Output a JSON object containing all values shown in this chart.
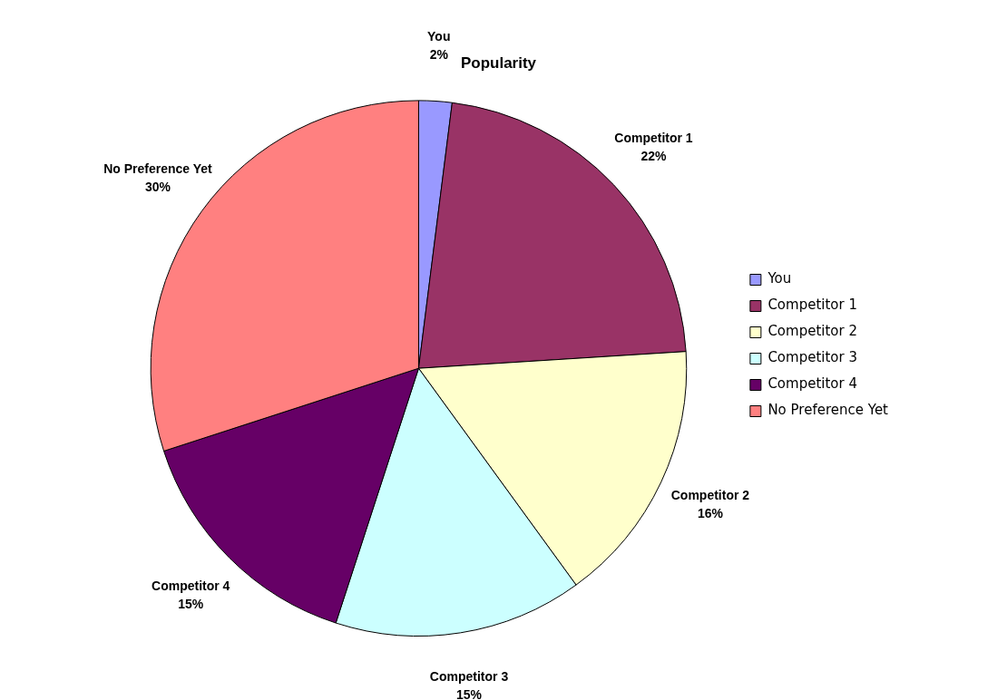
{
  "chart_data": {
    "type": "pie",
    "title": "Popularity",
    "categories": [
      "You",
      "Competitor 1",
      "Competitor 2",
      "Competitor 3",
      "Competitor 4",
      "No Preference Yet"
    ],
    "values": [
      2,
      22,
      16,
      15,
      15,
      30
    ],
    "value_labels": [
      "2%",
      "22%",
      "16%",
      "15%",
      "15%",
      "30%"
    ],
    "colors": [
      "#9999ff",
      "#993366",
      "#ffffcc",
      "#ccffff",
      "#660066",
      "#ff8080"
    ],
    "legend": "right"
  }
}
